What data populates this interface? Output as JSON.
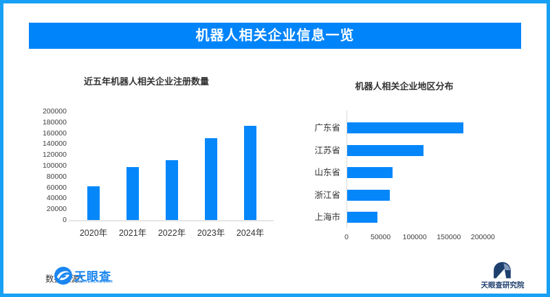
{
  "colors": {
    "accent": "#0587fa",
    "banner_bg": "#0084fa",
    "frame_border": "#18a0f4",
    "axis_line": "#e5e5e5",
    "tyc_blue": "#1b86f0",
    "navy": "#1f3f6e",
    "text_dark": "#333333"
  },
  "banner": {
    "title": "机器人相关企业信息一览"
  },
  "chart_data": [
    {
      "type": "bar",
      "orientation": "vertical",
      "title": "近五年机器人相关企业注册数量",
      "categories": [
        "2020年",
        "2021年",
        "2022年",
        "2023年",
        "2024年"
      ],
      "values": [
        62000,
        97000,
        110000,
        151000,
        174000
      ],
      "ylabel": "",
      "xlabel": "",
      "ylim": [
        0,
        200000
      ],
      "yticks": [
        0,
        20000,
        40000,
        60000,
        80000,
        100000,
        120000,
        140000,
        160000,
        180000,
        200000
      ],
      "grid": false,
      "bar_color": "#0587fa"
    },
    {
      "type": "bar",
      "orientation": "horizontal",
      "title": "机器人相关企业地区分布",
      "categories": [
        "广东省",
        "江苏省",
        "山东省",
        "浙江省",
        "上海市"
      ],
      "values": [
        170000,
        112000,
        67000,
        62000,
        44000
      ],
      "ylabel": "",
      "xlabel": "",
      "xlim": [
        0,
        200000
      ],
      "xticks": [
        0,
        50000,
        100000,
        150000,
        200000
      ],
      "grid": false,
      "bar_color": "#0587fa"
    }
  ],
  "footer": {
    "source_label": "数据来源：",
    "tyc_logo_text": "天眼查",
    "tyc_logo_subtext": "TianYanCha.com",
    "institute_text": "天眼查研究院"
  }
}
